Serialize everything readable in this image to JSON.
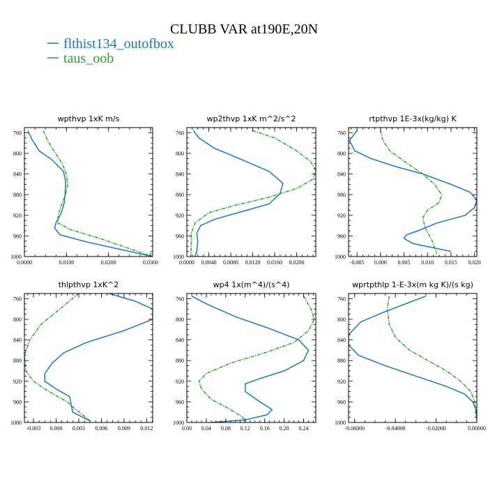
{
  "figure": {
    "title": "CLUBB VAR at190E,20N",
    "legend": [
      {
        "name": "flthist134_outofbox",
        "color": "#1f77b4"
      },
      {
        "name": "taus_oob",
        "color": "#2ca02c"
      }
    ]
  },
  "chart_data": [
    {
      "type": "line",
      "title": "wpthvp   1xK  m/s",
      "xlim": [
        0,
        0.0305
      ],
      "ylim": [
        1000,
        750
      ],
      "xticks": [
        0.0,
        0.01,
        0.02,
        0.03
      ],
      "xtick_labels": [
        "0.0000",
        "0.0100",
        "0.0200",
        "0.0300"
      ],
      "yticks": [
        760,
        800,
        840,
        880,
        920,
        960,
        1000
      ],
      "ytick_labels": [
        "760",
        "800",
        "840",
        "880",
        "920",
        "960",
        "1000"
      ],
      "series": [
        {
          "name": "flthist134_outofbox",
          "color": "#1f77b4",
          "dashed": false,
          "x": [
            0.0008,
            0.0018,
            0.0035,
            0.0065,
            0.0093,
            0.0098,
            0.0097,
            0.0095,
            0.0088,
            0.0075,
            0.0072,
            0.0085,
            0.015,
            0.0305
          ],
          "y": [
            756,
            773,
            795,
            812,
            835,
            855,
            875,
            895,
            915,
            935,
            945,
            958,
            972,
            1000
          ]
        },
        {
          "name": "taus_oob",
          "color": "#2ca02c",
          "dashed": true,
          "x": [
            0.0045,
            0.0055,
            0.007,
            0.009,
            0.01,
            0.0103,
            0.0098,
            0.0088,
            0.008,
            0.008,
            0.011,
            0.018,
            0.0305
          ],
          "y": [
            756,
            775,
            795,
            820,
            840,
            860,
            880,
            900,
            920,
            935,
            948,
            965,
            1000
          ]
        }
      ]
    },
    {
      "type": "line",
      "title": "wp2thvp   1xK  m^2/s^2",
      "xlim": [
        0,
        0.0235
      ],
      "ylim": [
        1000,
        750
      ],
      "xticks": [
        0.0,
        0.004,
        0.008,
        0.012,
        0.016,
        0.02
      ],
      "xtick_labels": [
        "0.0000",
        "0.0040",
        "0.0080",
        "0.0120",
        "0.0160",
        "0.0200"
      ],
      "yticks": [
        760,
        800,
        840,
        880,
        920,
        960,
        1000
      ],
      "ytick_labels": [
        "760",
        "800",
        "840",
        "880",
        "920",
        "960",
        "1000"
      ],
      "series": [
        {
          "name": "flthist134_outofbox",
          "color": "#1f77b4",
          "dashed": false,
          "x": [
            0.0012,
            0.0022,
            0.005,
            0.01,
            0.015,
            0.0175,
            0.017,
            0.015,
            0.01,
            0.005,
            0.0025,
            0.0018,
            0.002,
            0.0018,
            0.0015
          ],
          "y": [
            756,
            770,
            790,
            812,
            835,
            858,
            878,
            898,
            913,
            928,
            940,
            955,
            970,
            990,
            1000
          ]
        },
        {
          "name": "taus_oob",
          "color": "#2ca02c",
          "dashed": true,
          "x": [
            0.012,
            0.016,
            0.02,
            0.0225,
            0.0235,
            0.023,
            0.02,
            0.015,
            0.009,
            0.004,
            0.0015,
            0.0008,
            0.0008,
            0.0007
          ],
          "y": [
            756,
            770,
            795,
            815,
            832,
            850,
            868,
            885,
            900,
            915,
            935,
            955,
            980,
            1000
          ]
        }
      ]
    },
    {
      "type": "line",
      "title": "rtpthvp   1E-3x(kg/kg)  K",
      "xlim": [
        -0.0068,
        0.0205
      ],
      "ylim": [
        1000,
        750
      ],
      "xticks": [
        -0.005,
        0.0,
        0.005,
        0.01,
        0.015,
        0.02
      ],
      "xtick_labels": [
        "-0.005",
        "0.000",
        "0.005",
        "0.010",
        "0.015",
        "0.020"
      ],
      "yticks": [
        760,
        800,
        840,
        880,
        920,
        960,
        1000
      ],
      "ytick_labels": [
        "760",
        "800",
        "840",
        "880",
        "920",
        "960",
        "1000"
      ],
      "series": [
        {
          "name": "flthist134_outofbox",
          "color": "#1f77b4",
          "dashed": false,
          "x": [
            -0.005,
            -0.0066,
            -0.0055,
            -0.002,
            0.003,
            0.009,
            0.015,
            0.019,
            0.0205,
            0.02,
            0.018,
            0.012,
            0.008,
            0.0055,
            0.005,
            0.007,
            0.015
          ],
          "y": [
            756,
            775,
            795,
            810,
            825,
            840,
            860,
            875,
            890,
            905,
            920,
            935,
            950,
            958,
            965,
            975,
            990
          ]
        },
        {
          "name": "taus_oob",
          "color": "#2ca02c",
          "dashed": true,
          "x": [
            0.0,
            0.0005,
            0.002,
            0.005,
            0.009,
            0.0115,
            0.013,
            0.0125,
            0.01,
            0.009,
            0.0095,
            0.011,
            0.012
          ],
          "y": [
            756,
            775,
            795,
            815,
            840,
            860,
            880,
            895,
            910,
            925,
            945,
            970,
            995
          ]
        }
      ]
    },
    {
      "type": "line",
      "title": "thlpthvp   1xK^2",
      "xlim": [
        -0.0042,
        0.0128
      ],
      "ylim": [
        1000,
        750
      ],
      "xticks": [
        -0.003,
        0.0,
        0.003,
        0.006,
        0.009,
        0.012
      ],
      "xtick_labels": [
        "-0.003",
        "0.000",
        "0.003",
        "0.006",
        "0.009",
        "0.012"
      ],
      "yticks": [
        760,
        800,
        840,
        880,
        920,
        960,
        1000
      ],
      "ytick_labels": [
        "760",
        "800",
        "840",
        "880",
        "920",
        "960",
        "1000"
      ],
      "series": [
        {
          "name": "flthist134_outofbox",
          "color": "#1f77b4",
          "dashed": false,
          "x": [
            0.007,
            0.0105,
            0.0128,
            0.0128,
            0.009,
            0.004,
            0.001,
            -0.0005,
            -0.0015,
            -0.0015,
            0.0,
            0.0018,
            0.002,
            0.0022,
            0.0045
          ],
          "y": [
            750,
            765,
            780,
            800,
            822,
            845,
            865,
            885,
            905,
            920,
            935,
            950,
            965,
            980,
            997
          ]
        },
        {
          "name": "taus_oob",
          "color": "#2ca02c",
          "dashed": true,
          "x": [
            0.003,
            0.0005,
            -0.002,
            -0.0035,
            -0.0042,
            -0.004,
            -0.003,
            -0.0015,
            0.0,
            0.0015,
            0.0022,
            0.0035,
            0.0045
          ],
          "y": [
            750,
            780,
            810,
            840,
            870,
            900,
            920,
            935,
            948,
            960,
            970,
            985,
            997
          ]
        }
      ]
    },
    {
      "type": "line",
      "title": "wp4   1x(m^4)/(s^4)",
      "xlim": [
        0,
        0.265
      ],
      "ylim": [
        1000,
        750
      ],
      "xticks": [
        0.0,
        0.04,
        0.08,
        0.12,
        0.16,
        0.2,
        0.24
      ],
      "xtick_labels": [
        "0.00",
        "0.04",
        "0.08",
        "0.12",
        "0.16",
        "0.20",
        "0.24"
      ],
      "yticks": [
        760,
        800,
        840,
        880,
        920,
        960,
        1000
      ],
      "ytick_labels": [
        "760",
        "800",
        "840",
        "880",
        "920",
        "960",
        "1000"
      ],
      "series": [
        {
          "name": "flthist134_outofbox",
          "color": "#1f77b4",
          "dashed": false,
          "x": [
            0.01,
            0.04,
            0.1,
            0.17,
            0.23,
            0.25,
            0.24,
            0.2,
            0.15,
            0.12,
            0.12,
            0.15,
            0.175,
            0.165,
            0.12,
            0.05
          ],
          "y": [
            755,
            770,
            795,
            818,
            840,
            860,
            880,
            900,
            915,
            925,
            940,
            960,
            975,
            985,
            995,
            1000
          ]
        },
        {
          "name": "taus_oob",
          "color": "#2ca02c",
          "dashed": true,
          "x": [
            0.24,
            0.255,
            0.262,
            0.25,
            0.22,
            0.16,
            0.09,
            0.04,
            0.025,
            0.03,
            0.05,
            0.09,
            0.115,
            0.12
          ],
          "y": [
            755,
            780,
            800,
            822,
            845,
            865,
            885,
            905,
            920,
            935,
            955,
            975,
            990,
            1000
          ]
        }
      ]
    },
    {
      "type": "line",
      "title": "wprtpthlp   1-E-3x(m kg K)/(s kg)",
      "xlim": [
        -0.063,
        0.0
      ],
      "ylim": [
        1000,
        750
      ],
      "xticks": [
        -0.06,
        -0.04,
        -0.02,
        0.0
      ],
      "xtick_labels": [
        "-0.06000",
        "-0.04000",
        "-0.02000",
        "0.00000"
      ],
      "yticks": [
        760,
        800,
        840,
        880,
        920,
        960,
        1000
      ],
      "ytick_labels": [
        "760",
        "800",
        "840",
        "880",
        "920",
        "960",
        "1000"
      ],
      "series": [
        {
          "name": "flthist134_outofbox",
          "color": "#1f77b4",
          "dashed": false,
          "x": [
            -0.025,
            -0.045,
            -0.057,
            -0.063,
            -0.063,
            -0.058,
            -0.045,
            -0.03,
            -0.015,
            -0.006,
            -0.002,
            -0.0005,
            0.0
          ],
          "y": [
            755,
            785,
            805,
            830,
            850,
            870,
            890,
            910,
            930,
            945,
            960,
            975,
            995
          ]
        },
        {
          "name": "taus_oob",
          "color": "#2ca02c",
          "dashed": true,
          "x": [
            -0.043,
            -0.044,
            -0.043,
            -0.04,
            -0.033,
            -0.024,
            -0.015,
            -0.008,
            -0.003,
            -0.001,
            0.0
          ],
          "y": [
            755,
            780,
            810,
            835,
            860,
            880,
            900,
            920,
            940,
            960,
            995
          ]
        }
      ]
    }
  ]
}
